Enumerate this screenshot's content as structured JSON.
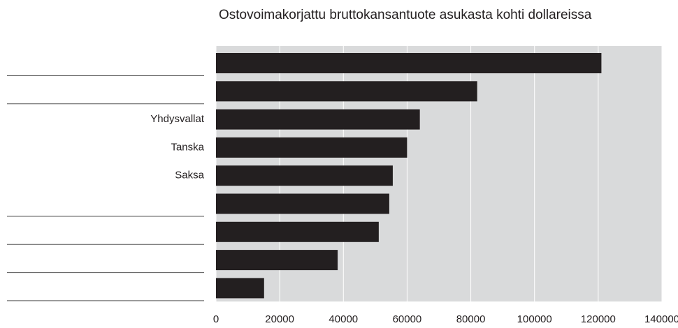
{
  "chart_data": {
    "type": "barh",
    "title": "Ostovoimakorjattu bruttokansantuote asukasta kohti dollareissa",
    "categories": [
      null,
      null,
      "Yhdysvallat",
      "Tanska",
      "Saksa",
      null,
      null,
      null,
      null
    ],
    "values": [
      121000,
      82000,
      64000,
      60000,
      55500,
      54400,
      51100,
      38200,
      15100
    ],
    "color": "#231f20",
    "xlim": [
      0,
      140000
    ],
    "xticks": [
      0,
      20000,
      40000,
      60000,
      80000,
      100000,
      120000,
      140000
    ],
    "grid": true
  }
}
